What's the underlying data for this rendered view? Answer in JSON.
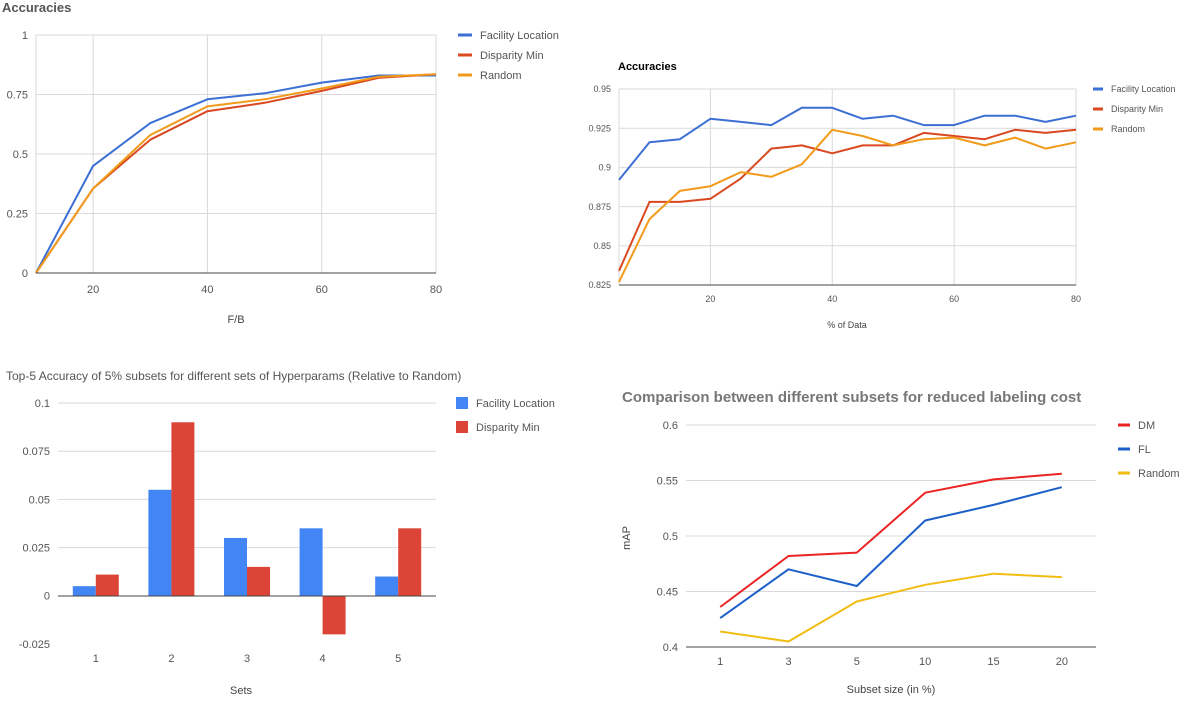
{
  "chart_data": [
    {
      "type": "line",
      "title": "Accuracies",
      "xlabel": "F/B",
      "ylabel": "",
      "xlim": [
        10,
        80
      ],
      "ylim": [
        0,
        1
      ],
      "xticks": [
        "20",
        "40",
        "60",
        "80"
      ],
      "yticks": [
        "0",
        "0.25",
        "0.5",
        "0.75",
        "1"
      ],
      "legend_position": "right",
      "grid": true,
      "x": [
        10,
        20,
        30,
        40,
        50,
        60,
        70,
        80
      ],
      "series": [
        {
          "name": "Facility Location",
          "color": "#3c6fd4",
          "values": [
            0,
            0.45,
            0.63,
            0.73,
            0.755,
            0.8,
            0.83,
            0.83
          ]
        },
        {
          "name": "Disparity Min",
          "color": "#d9481f",
          "values": [
            0,
            0.355,
            0.56,
            0.68,
            0.715,
            0.765,
            0.82,
            0.835
          ]
        },
        {
          "name": "Random",
          "color": "#f29a1a",
          "values": [
            0,
            0.355,
            0.58,
            0.7,
            0.73,
            0.775,
            0.825,
            0.835
          ]
        }
      ]
    },
    {
      "type": "line",
      "title": "Accuracies",
      "xlabel": "% of Data",
      "ylabel": "",
      "xlim": [
        5,
        80
      ],
      "ylim": [
        0.825,
        0.95
      ],
      "xticks": [
        "20",
        "40",
        "60",
        "80"
      ],
      "yticks": [
        "0.825",
        "0.85",
        "0.875",
        "0.9",
        "0.925",
        "0.95"
      ],
      "legend_position": "right",
      "grid": true,
      "x": [
        5,
        10,
        15,
        20,
        25,
        30,
        35,
        40,
        45,
        50,
        55,
        60,
        65,
        70,
        75,
        80
      ],
      "series": [
        {
          "name": "Facility Location",
          "color": "#3c6fd4",
          "values": [
            0.892,
            0.916,
            0.918,
            0.931,
            0.929,
            0.927,
            0.938,
            0.938,
            0.931,
            0.933,
            0.927,
            0.927,
            0.933,
            0.933,
            0.929,
            0.933
          ]
        },
        {
          "name": "Disparity Min",
          "color": "#d9481f",
          "values": [
            0.834,
            0.878,
            0.878,
            0.88,
            0.893,
            0.912,
            0.914,
            0.909,
            0.914,
            0.914,
            0.922,
            0.92,
            0.918,
            0.924,
            0.922,
            0.924
          ]
        },
        {
          "name": "Random",
          "color": "#f29a1a",
          "values": [
            0.827,
            0.867,
            0.885,
            0.888,
            0.897,
            0.894,
            0.902,
            0.924,
            0.92,
            0.914,
            0.918,
            0.919,
            0.914,
            0.919,
            0.912,
            0.916
          ]
        }
      ]
    },
    {
      "type": "bar",
      "title": "Top-5 Accuracy of 5% subsets for different sets of Hyperparams (Relative to Random)",
      "xlabel": "Sets",
      "ylabel": "",
      "ylim": [
        -0.025,
        0.1
      ],
      "yticks": [
        "-0.025",
        "0",
        "0.025",
        "0.05",
        "0.075",
        "0.1"
      ],
      "legend_position": "right",
      "grid": true,
      "categories": [
        "1",
        "2",
        "3",
        "4",
        "5"
      ],
      "series": [
        {
          "name": "Facility Location",
          "color": "#4285f4",
          "values": [
            0.005,
            0.055,
            0.03,
            0.035,
            0.01
          ]
        },
        {
          "name": "Disparity Min",
          "color": "#db4437",
          "values": [
            0.011,
            0.09,
            0.015,
            -0.02,
            0.035
          ]
        }
      ]
    },
    {
      "type": "line",
      "title": "Comparison between different subsets for reduced labeling cost",
      "xlabel": "Subset size (in %)",
      "ylabel": "mAP",
      "ylim": [
        0.4,
        0.6
      ],
      "yticks": [
        "0.4",
        "0.45",
        "0.5",
        "0.55",
        "0.6"
      ],
      "legend_position": "right",
      "grid": true,
      "categories": [
        "1",
        "3",
        "5",
        "10",
        "15",
        "20"
      ],
      "series": [
        {
          "name": "DM",
          "color": "#ea2424",
          "values": [
            0.436,
            0.482,
            0.485,
            0.539,
            0.551,
            0.556
          ]
        },
        {
          "name": "FL",
          "color": "#1d5fc9",
          "values": [
            0.426,
            0.47,
            0.455,
            0.514,
            0.528,
            0.544
          ]
        },
        {
          "name": "Random",
          "color": "#f2bd12",
          "values": [
            0.414,
            0.405,
            0.441,
            0.456,
            0.466,
            0.463
          ]
        }
      ]
    }
  ]
}
